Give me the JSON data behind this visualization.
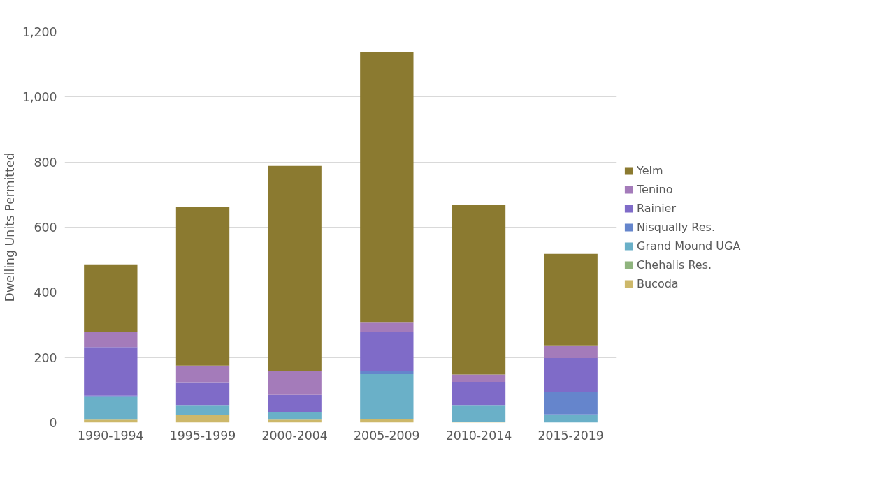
{
  "chart_data": {
    "type": "bar",
    "stacked": true,
    "ylabel": "Dwelling Units Permitted",
    "categories": [
      "1990-1994",
      "1995-1999",
      "2000-2004",
      "2005-2009",
      "2010-2014",
      "2015-2019"
    ],
    "series": [
      {
        "name": "Bucoda",
        "color": "#cdb86a",
        "values": [
          9,
          24,
          9,
          12,
          3,
          null
        ]
      },
      {
        "name": "Chehalis Res.",
        "color": "#8fb47e",
        "values": [
          0,
          0,
          0,
          0,
          0,
          0
        ]
      },
      {
        "name": "Grand Mound UGA",
        "color": "#6ab0c8",
        "values": [
          70,
          30,
          24,
          137,
          51,
          25
        ]
      },
      {
        "name": "Nisqually Res.",
        "color": "#6585cc",
        "values": [
          4,
          0,
          0,
          9,
          0,
          69
        ]
      },
      {
        "name": "Rainier",
        "color": "#7f6bc8",
        "values": [
          149,
          68,
          52,
          121,
          70,
          104
        ]
      },
      {
        "name": "Tenino",
        "color": "#a47bba",
        "values": [
          47,
          53,
          73,
          28,
          24,
          37
        ]
      },
      {
        "name": "Yelm",
        "color": "#8b7a30",
        "values": [
          207,
          488,
          630,
          831,
          520,
          283
        ]
      }
    ],
    "ylim": [
      0,
      1200
    ],
    "yticks": [
      {
        "value": 0,
        "label": "0"
      },
      {
        "value": 200,
        "label": "200"
      },
      {
        "value": 400,
        "label": "400"
      },
      {
        "value": 600,
        "label": "600"
      },
      {
        "value": 800,
        "label": "800"
      },
      {
        "value": 1000,
        "label": "1,000"
      },
      {
        "value": 1200,
        "label": "1,200"
      }
    ],
    "grid": "y",
    "legend": "right"
  }
}
